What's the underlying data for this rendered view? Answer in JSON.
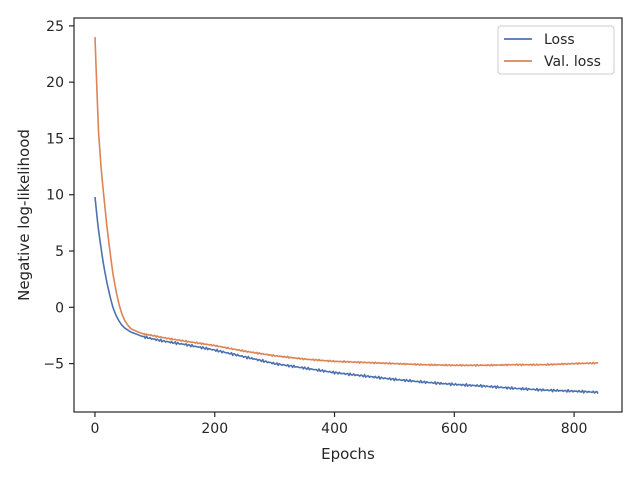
{
  "chart_data": {
    "type": "line",
    "xlabel": "Epochs",
    "ylabel": "Negative log-likelihood",
    "xlim": [
      -35,
      880
    ],
    "ylim": [
      -9.3,
      25.7
    ],
    "xticks": [
      0,
      200,
      400,
      600,
      800
    ],
    "yticks": [
      -5,
      0,
      5,
      10,
      15,
      20,
      25
    ],
    "ytick_labels": [
      "−5",
      "0",
      "5",
      "10",
      "15",
      "20",
      "25"
    ],
    "grid": false,
    "legend_position": "top-right",
    "series": [
      {
        "name": "Loss",
        "color": "#4c72b0",
        "x": [
          0,
          5,
          10,
          15,
          20,
          25,
          30,
          35,
          40,
          45,
          50,
          60,
          70,
          80,
          100,
          120,
          150,
          200,
          250,
          300,
          350,
          400,
          450,
          500,
          550,
          600,
          650,
          700,
          750,
          800,
          840
        ],
        "y": [
          9.8,
          7.2,
          5.3,
          3.6,
          2.2,
          1.0,
          0.0,
          -0.7,
          -1.2,
          -1.6,
          -1.85,
          -2.2,
          -2.4,
          -2.6,
          -2.85,
          -3.05,
          -3.3,
          -3.8,
          -4.4,
          -5.0,
          -5.4,
          -5.8,
          -6.1,
          -6.4,
          -6.65,
          -6.85,
          -7.0,
          -7.2,
          -7.35,
          -7.45,
          -7.55
        ]
      },
      {
        "name": "Val. loss",
        "color": "#dd8452",
        "x": [
          0,
          3,
          6,
          10,
          15,
          20,
          25,
          30,
          35,
          40,
          45,
          50,
          55,
          60,
          70,
          80,
          100,
          120,
          150,
          200,
          250,
          300,
          350,
          400,
          450,
          500,
          550,
          600,
          650,
          700,
          750,
          800,
          840
        ],
        "y": [
          24.0,
          19.5,
          15.5,
          12.5,
          9.8,
          7.2,
          5.0,
          3.0,
          1.5,
          0.3,
          -0.6,
          -1.2,
          -1.6,
          -1.9,
          -2.15,
          -2.35,
          -2.55,
          -2.75,
          -3.0,
          -3.4,
          -3.9,
          -4.3,
          -4.6,
          -4.8,
          -4.9,
          -5.0,
          -5.1,
          -5.15,
          -5.15,
          -5.1,
          -5.1,
          -5.0,
          -4.95
        ]
      }
    ]
  }
}
